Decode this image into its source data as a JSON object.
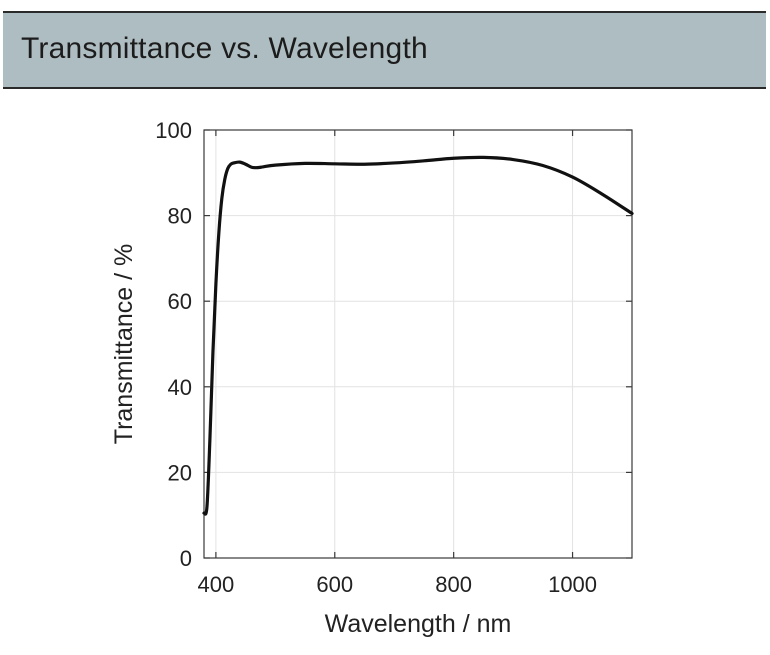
{
  "header": {
    "title": "Transmittance vs. Wavelength",
    "background": "#aebdc1"
  },
  "chart_data": {
    "type": "line",
    "title": "",
    "xlabel": "Wavelength / nm",
    "ylabel": "Transmittance / %",
    "xlim": [
      380,
      1100
    ],
    "ylim": [
      0,
      100
    ],
    "xticks": [
      400,
      600,
      800,
      1000
    ],
    "yticks": [
      0,
      20,
      40,
      60,
      80,
      100
    ],
    "grid": true,
    "series": [
      {
        "color": "#111111",
        "x": [
          380,
          385,
          390,
          395,
          400,
          405,
          410,
          415,
          420,
          425,
          430,
          440,
          450,
          460,
          470,
          480,
          500,
          550,
          600,
          650,
          700,
          750,
          800,
          850,
          900,
          950,
          1000,
          1050,
          1100
        ],
        "y": [
          10.5,
          12,
          28,
          48,
          64,
          76,
          84,
          88.5,
          91,
          92,
          92.3,
          92.5,
          92,
          91.3,
          91.2,
          91.4,
          91.8,
          92.2,
          92.1,
          92,
          92.3,
          92.8,
          93.4,
          93.6,
          93.1,
          91.7,
          89,
          85,
          80.5
        ]
      }
    ]
  }
}
